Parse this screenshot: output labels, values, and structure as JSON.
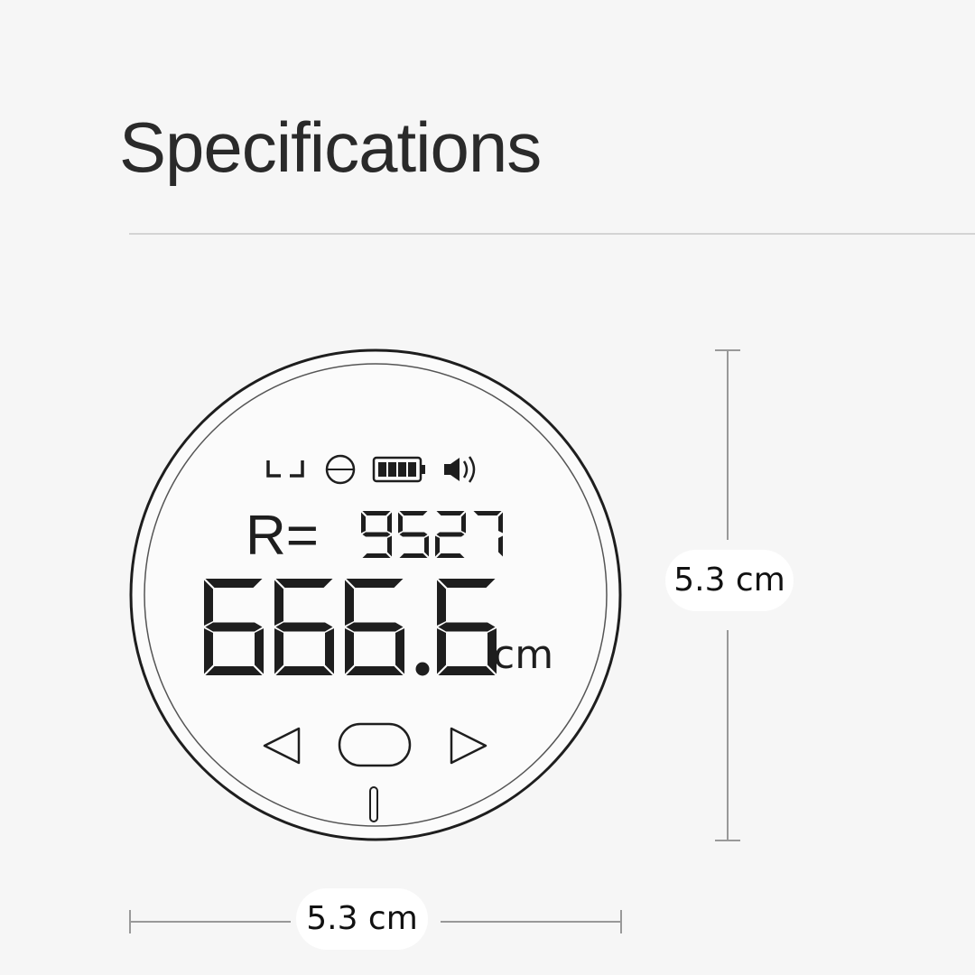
{
  "header": {
    "title": "Specifications"
  },
  "device": {
    "status_icons": [
      "bracket-mode-icon",
      "circle-line-icon",
      "battery-full-icon",
      "speaker-icon"
    ],
    "battery_level": 1.0,
    "radius_label": "R=",
    "radius_value": "9527",
    "main_value": "666.6",
    "unit": "cm",
    "buttons": [
      "left-arrow-button",
      "center-button",
      "right-arrow-button"
    ]
  },
  "dimensions": {
    "height_label": "5.3 cm",
    "width_label": "5.3 cm"
  },
  "colors": {
    "background": "#f6f6f6",
    "ink": "#1e1e1e",
    "line": "#999999"
  }
}
